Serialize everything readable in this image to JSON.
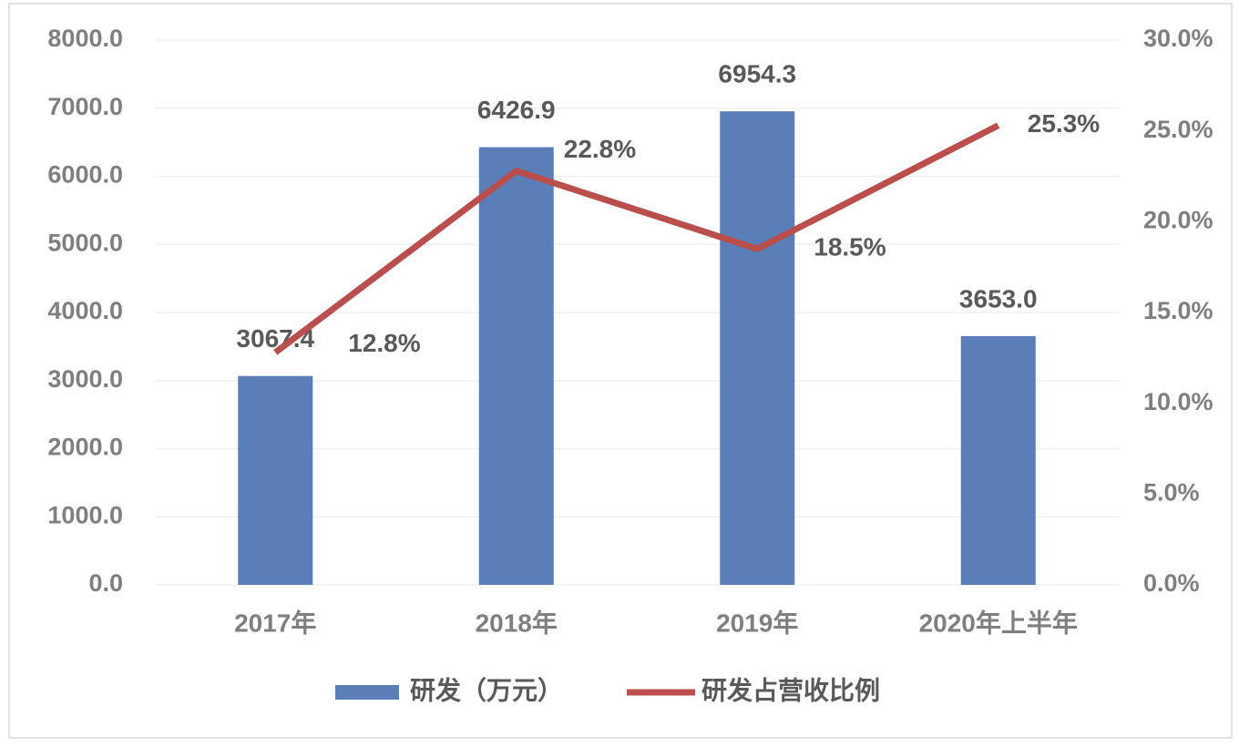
{
  "chart_data": {
    "type": "combo",
    "categories": [
      "2017年",
      "2018年",
      "2019年",
      "2020年上半年"
    ],
    "series": [
      {
        "name": "研发（万元）",
        "type": "bar",
        "color": "#5a7fb8",
        "values": [
          3067.4,
          6426.9,
          6954.3,
          3653.0
        ],
        "value_labels": [
          "3067.4",
          "6426.9",
          "6954.3",
          "3653.0"
        ]
      },
      {
        "name": "研发占营收比例",
        "type": "line",
        "axis": "y2",
        "color": "#b94e4c",
        "values": [
          12.8,
          22.8,
          18.5,
          25.3
        ],
        "value_labels": [
          "12.8%",
          "22.8%",
          "18.5%",
          "25.3%"
        ]
      }
    ],
    "ylim": [
      0,
      8000
    ],
    "yticks": [
      {
        "value": 0,
        "label": "0.0"
      },
      {
        "value": 1000,
        "label": "1000.0"
      },
      {
        "value": 2000,
        "label": "2000.0"
      },
      {
        "value": 3000,
        "label": "3000.0"
      },
      {
        "value": 4000,
        "label": "4000.0"
      },
      {
        "value": 5000,
        "label": "5000.0"
      },
      {
        "value": 6000,
        "label": "6000.0"
      },
      {
        "value": 7000,
        "label": "7000.0"
      },
      {
        "value": 8000,
        "label": "8000.0"
      }
    ],
    "y2lim": [
      0,
      30
    ],
    "y2ticks": [
      {
        "value": 0,
        "label": "0.0%"
      },
      {
        "value": 5,
        "label": "5.0%"
      },
      {
        "value": 10,
        "label": "10.0%"
      },
      {
        "value": 15,
        "label": "15.0%"
      },
      {
        "value": 20,
        "label": "20.0%"
      },
      {
        "value": 25,
        "label": "25.0%"
      },
      {
        "value": 30,
        "label": "30.0%"
      }
    ],
    "grid": true,
    "legend": "bottom"
  }
}
